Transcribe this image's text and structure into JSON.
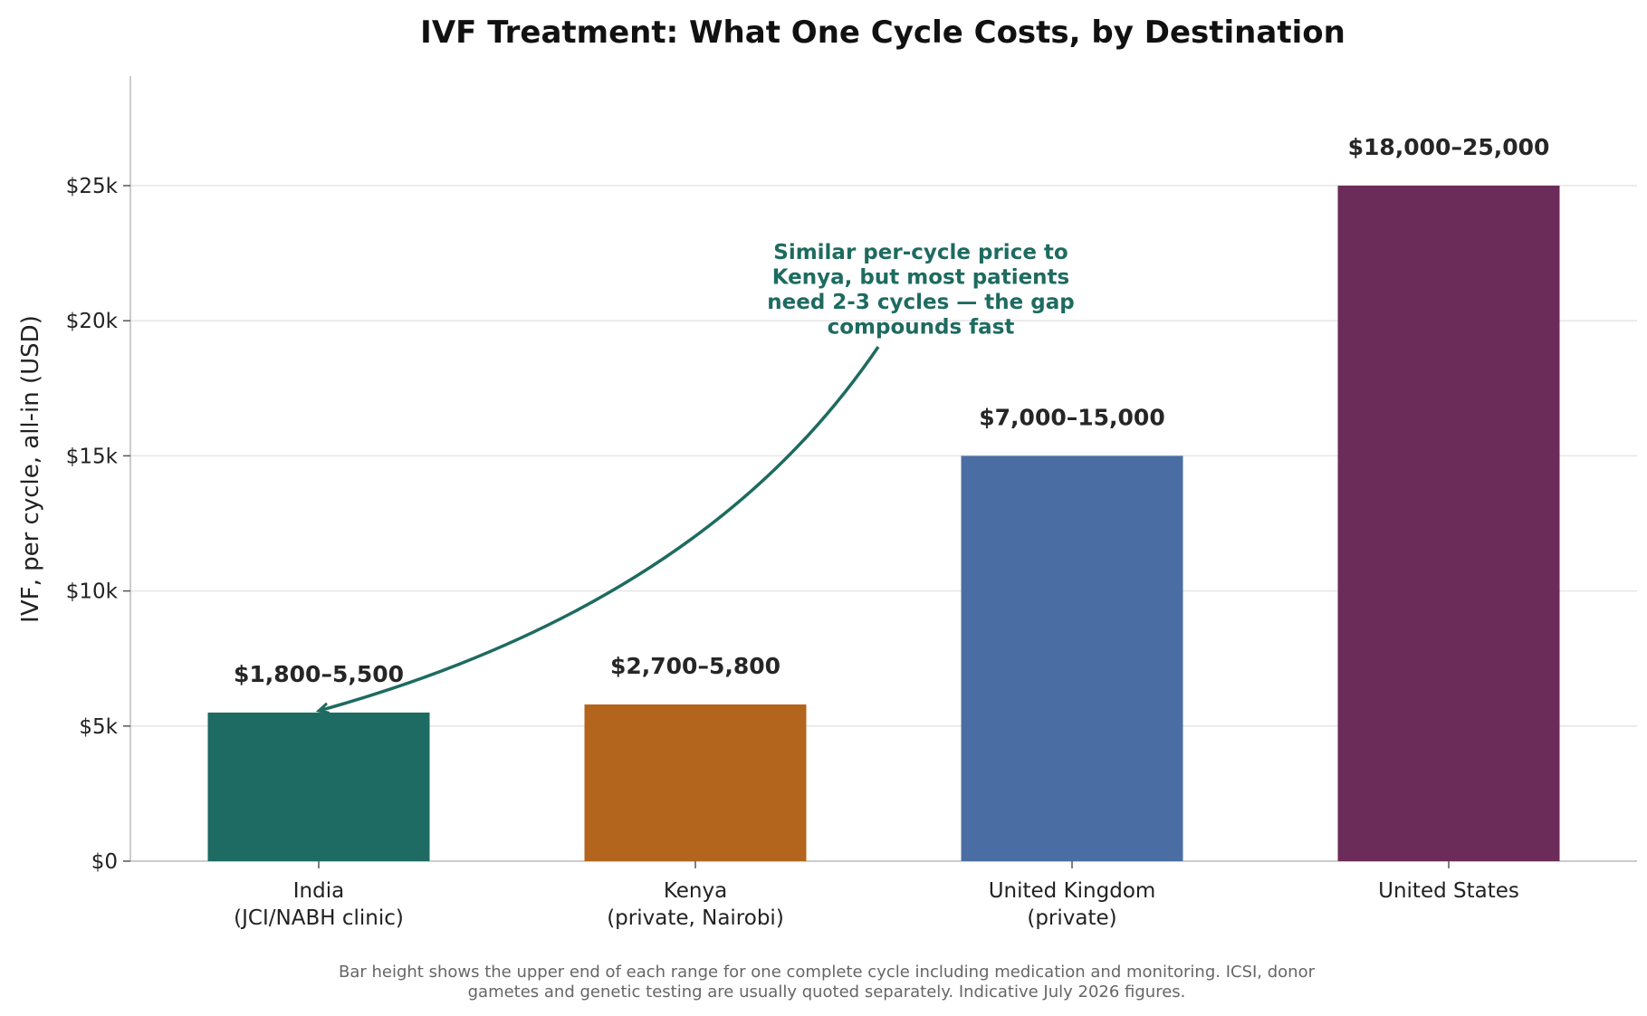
{
  "chart_data": {
    "type": "bar",
    "title": "IVF Treatment: What One Cycle Costs, by Destination",
    "ylabel": "IVF, per cycle, all-in (USD)",
    "xlabel": "",
    "ylim": [
      0,
      29000
    ],
    "yticks": [
      0,
      5000,
      10000,
      15000,
      20000,
      25000
    ],
    "ytick_labels": [
      "$0",
      "$5k",
      "$10k",
      "$15k",
      "$20k",
      "$25k"
    ],
    "grid": "horizontal",
    "categories": [
      [
        "India",
        "(JCI/NABH clinic)"
      ],
      [
        "Kenya",
        "(private, Nairobi)"
      ],
      [
        "United Kingdom",
        "(private)"
      ],
      [
        "United States"
      ]
    ],
    "values": [
      5500,
      5800,
      15000,
      25000
    ],
    "ranges": [
      [
        1800,
        5500
      ],
      [
        2700,
        5800
      ],
      [
        7000,
        15000
      ],
      [
        18000,
        25000
      ]
    ],
    "data_labels": [
      "$1,800–5,500",
      "$2,700–5,800",
      "$7,000–15,000",
      "$18,000–25,000"
    ],
    "colors": [
      "#1d6b62",
      "#b3651e",
      "#4a6ea3",
      "#6b2c5a"
    ],
    "annotation": {
      "lines": [
        "Similar per-cycle price to",
        "Kenya, but most patients",
        "need 2-3 cycles — the gap",
        "compounds fast"
      ],
      "color": "#1e6b60",
      "points_to_category": 0
    },
    "footnote": [
      "Bar height shows the upper end of each range for one complete cycle including medication and monitoring. ICSI, donor",
      "gametes and genetic testing are usually quoted separately. Indicative July 2026 figures."
    ]
  }
}
